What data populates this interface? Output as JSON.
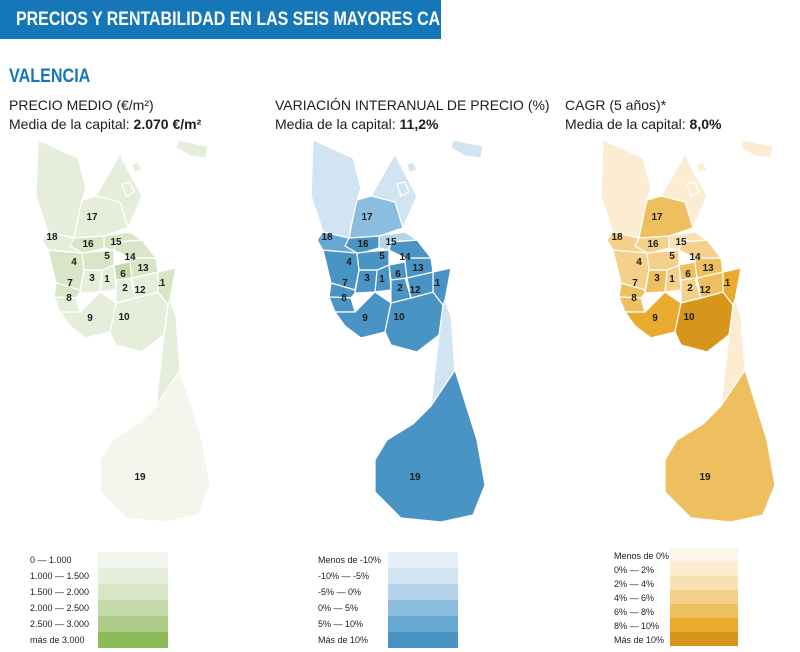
{
  "header": {
    "title": "PRECIOS Y RENTABILIDAD EN LAS SEIS MAYORES CAPITALES"
  },
  "city": "VALENCIA",
  "panels": [
    {
      "title": "PRECIO MEDIO (€/m²)",
      "avg_label": "Media de la capital: ",
      "avg_value": "2.070 €/m²",
      "legend": [
        "0 — 1.000",
        "1.000 — 1.500",
        "1.500 — 2.000",
        "2.000 — 2.500",
        "2.500 — 3.000",
        "más de 3.000"
      ],
      "colors": [
        "#f3f6ec",
        "#e6eedb",
        "#d8e5c6",
        "#c6dbab",
        "#aecd88",
        "#8cbb5b"
      ],
      "district_class": [
        1,
        1,
        1,
        2,
        2,
        3,
        2,
        1,
        1,
        1,
        2,
        1,
        2,
        2,
        2,
        2,
        1,
        1,
        0
      ]
    },
    {
      "title": "VARIACIÓN INTERANUAL DE PRECIO (%)",
      "avg_label": "Media de la capital: ",
      "avg_value": "11,2%",
      "legend": [
        "Menos de -10%",
        "-10% — -5%",
        "-5% — 0%",
        "0% — 5%",
        "5% — 10%",
        "Más de 10%"
      ],
      "colors": [
        "#e4eff7",
        "#d1e4f2",
        "#b5d4ea",
        "#8bbede",
        "#64a8d3",
        "#4a93c5"
      ],
      "district_class": [
        5,
        5,
        5,
        5,
        5,
        5,
        5,
        5,
        5,
        5,
        5,
        5,
        5,
        5,
        2,
        5,
        3,
        4,
        5
      ]
    },
    {
      "title": "CAGR (5 años)*",
      "avg_label": "Media de la capital: ",
      "avg_value": "8,0%",
      "legend": [
        "Menos de 0%",
        "0% — 2%",
        "2% — 4%",
        "4% — 6%",
        "6% — 8%",
        "8% — 10%",
        "Más de 10%"
      ],
      "colors": [
        "#fdf5e8",
        "#fbecd2",
        "#f8e0b3",
        "#f4d08b",
        "#eebf5f",
        "#e8ab2e",
        "#d8951b"
      ],
      "district_class": [
        3,
        3,
        4,
        3,
        3,
        4,
        4,
        4,
        5,
        6,
        5,
        4,
        4,
        3,
        2,
        3,
        4,
        3,
        4
      ]
    }
  ]
}
